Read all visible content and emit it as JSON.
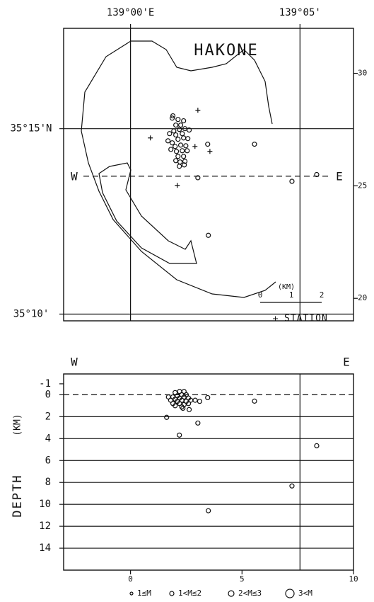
{
  "chart_data": [
    {
      "type": "map",
      "title": "HAKONE",
      "xlim": [
        -3,
        10
      ],
      "ylim": [
        19,
        32
      ],
      "xticks": [
        {
          "value": 0,
          "label": "139°00'E"
        },
        {
          "value": 7.6,
          "label": "139°05'"
        }
      ],
      "yticks": [
        {
          "value": 27.54,
          "label": "35°15'N"
        },
        {
          "value": 19.3,
          "label": "35°10'"
        }
      ],
      "y2lim": [
        19,
        32
      ],
      "y2ticks": [
        20,
        25,
        30
      ],
      "section_y": 25.43,
      "section_labels": [
        "W",
        "E"
      ],
      "scale_labels": [
        "0",
        "1",
        "2"
      ],
      "scale_unit": "(KM)",
      "series": [
        {
          "marker": "circle",
          "class": 1,
          "x": [
            1.9,
            1.87,
            2.13,
            2.38,
            2.03,
            2.25,
            1.94,
            2.19,
            2.44,
            2.03,
            2.32,
            1.68,
            1.87,
            2.13,
            2.38,
            2.57,
            2.0,
            2.25,
            2.48,
            1.81,
            2.06,
            2.32,
            2.54,
            2.13,
            2.38,
            2.22,
            2.44,
            2.19,
            2.41,
            2.03,
            1.75,
            2.63,
            3.46,
            5.56,
            3.02,
            7.24,
            8.35,
            3.49
          ],
          "y": [
            28.11,
            28.01,
            27.95,
            27.89,
            27.7,
            27.7,
            27.44,
            27.51,
            27.54,
            27.26,
            27.32,
            27.0,
            26.91,
            27.07,
            27.13,
            27.1,
            26.75,
            26.81,
            26.78,
            26.62,
            26.53,
            26.56,
            26.56,
            26.31,
            26.31,
            26.06,
            26.09,
            25.87,
            25.93,
            26.12,
            27.32,
            27.48,
            26.85,
            26.85,
            25.36,
            25.2,
            25.5,
            22.8
          ]
        },
        {
          "name": "STATION",
          "marker": "+",
          "x": [
            3.02,
            0.89,
            2.89,
            3.56,
            2.1
          ],
          "y": [
            28.36,
            27.13,
            26.75,
            26.53,
            25.02
          ]
        }
      ]
    },
    {
      "type": "scatter",
      "section_labels": [
        "W",
        "E"
      ],
      "ylabel": "DEPTH",
      "ylabel_unit": "(KM)",
      "xlim": [
        -3,
        10
      ],
      "xticks": [
        0,
        5,
        10
      ],
      "ylim": [
        16,
        -1.9
      ],
      "yticks": [
        -1,
        0,
        2,
        4,
        6,
        8,
        10,
        12,
        14
      ],
      "surface": 0,
      "vline": 7.6,
      "legend": [
        "1≤M",
        "1<M≤2",
        "2<M≤3",
        "3<M"
      ],
      "series": [
        {
          "class": 1,
          "x": [
            2.0,
            2.2,
            2.4,
            2.3,
            2.1,
            2.5,
            1.9,
            2.0,
            2.2,
            2.4,
            2.6,
            1.8,
            2.1,
            2.3,
            2.5,
            2.7,
            1.9,
            2.2,
            2.4,
            2.6,
            2.0,
            2.3,
            2.9,
            3.1,
            1.7,
            1.62,
            2.63,
            2.35,
            3.02,
            2.19,
            8.35,
            7.24,
            3.49,
            3.46,
            5.56
          ],
          "y": [
            -0.2,
            -0.3,
            -0.3,
            0.0,
            0.1,
            0.0,
            0.2,
            0.4,
            0.3,
            0.2,
            0.3,
            0.5,
            0.6,
            0.5,
            0.6,
            0.5,
            0.8,
            0.8,
            0.9,
            0.8,
            1.0,
            1.1,
            0.5,
            0.6,
            0.2,
            2.06,
            1.35,
            1.23,
            2.58,
            3.68,
            4.65,
            8.32,
            10.58,
            0.26,
            0.58
          ]
        }
      ]
    }
  ]
}
